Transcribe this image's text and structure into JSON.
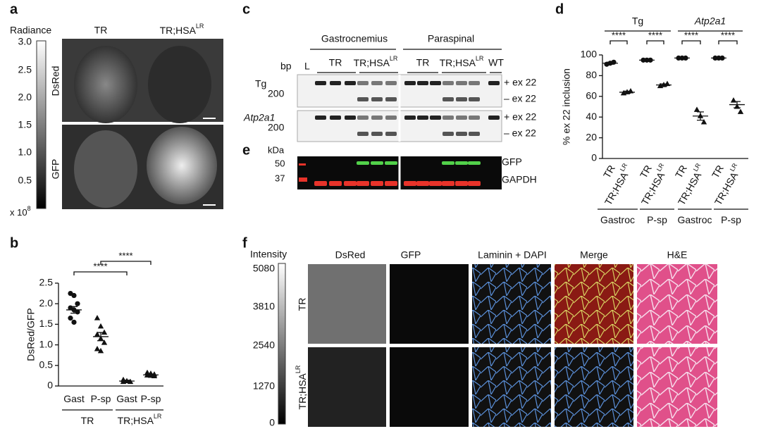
{
  "panel_labels": [
    "a",
    "b",
    "c",
    "d",
    "e",
    "f"
  ],
  "genotype": {
    "tr": "TR",
    "hsa": "TR;HSA",
    "sup": "LR"
  },
  "panel_a": {
    "colorbar_title": "Radiance",
    "colorbar_ticks": [
      "3.0",
      "2.5",
      "2.0",
      "1.5",
      "1.0",
      "0.5"
    ],
    "multiplier": "x 10",
    "exponent": "8",
    "rows": [
      "DsRed",
      "GFP"
    ]
  },
  "panel_c": {
    "tissues": [
      "Gastrocnemius",
      "Paraspinal"
    ],
    "bp": "bp",
    "ladder": "L",
    "wt": "WT",
    "genes": [
      "Tg",
      "Atp2a1"
    ],
    "size": "200",
    "bands": [
      "+ ex 22",
      "– ex 22"
    ]
  },
  "panel_e": {
    "unit": "kDa",
    "sizes": [
      "50",
      "37"
    ],
    "proteins": [
      "GFP",
      "GAPDH"
    ]
  },
  "panel_f": {
    "colorbar_title": "Intensity",
    "colorbar_ticks": [
      "5080",
      "3810",
      "2540",
      "1270",
      "0"
    ],
    "columns": [
      "DsRed",
      "GFP",
      "Laminin + DAPI",
      "Merge",
      "H&E"
    ]
  },
  "chart_data": [
    {
      "type": "strip",
      "ylabel": "DsRed/GFP",
      "categories": [
        {
          "label": "Gast"
        },
        {
          "label": "P-sp"
        },
        {
          "label": "Gast"
        },
        {
          "label": "P-sp"
        }
      ],
      "groups": [
        {
          "label": "TR"
        },
        {
          "label": "TR;HSA",
          "sup": "LR"
        }
      ],
      "points": [
        [
          2.25,
          2.2,
          2.0,
          1.9,
          1.85,
          1.8,
          1.65,
          1.55
        ],
        [
          1.65,
          1.45,
          1.3,
          1.25,
          1.15,
          1.05,
          0.9,
          0.85
        ],
        [
          0.15,
          0.12,
          0.1,
          0.1
        ],
        [
          0.32,
          0.3,
          0.28,
          0.26,
          0.25,
          0.24
        ]
      ],
      "means": [
        1.85,
        1.2,
        0.12,
        0.27
      ],
      "errors": [
        0.08,
        0.1,
        0.02,
        0.02
      ],
      "markers": [
        "circle",
        "triangle",
        "triangle",
        "triangle"
      ],
      "color": "#111111",
      "significance": [
        "****",
        "****"
      ],
      "ylim": [
        0,
        2.5
      ],
      "yticks": [
        0,
        {
          "value": 0.5,
          "label": "0.5"
        },
        {
          "value": 1,
          "label": "1.0"
        },
        {
          "value": 1.5,
          "label": "1.5"
        },
        {
          "value": 2,
          "label": "2.0"
        },
        {
          "value": 2.5,
          "label": "2.5"
        }
      ]
    },
    {
      "type": "strip",
      "ylabel": "% ex 22 inclusion",
      "categories": [
        {
          "label": "TR"
        },
        {
          "label": "TR;HSA",
          "sup": "LR"
        },
        {
          "label": "TR"
        },
        {
          "label": "TR;HSA",
          "sup": "LR"
        },
        {
          "label": "TR"
        },
        {
          "label": "TR;HSA",
          "sup": "LR"
        },
        {
          "label": "TR"
        },
        {
          "label": "TR;HSA",
          "sup": "LR"
        }
      ],
      "groups": [
        {
          "label": "Gastroc"
        },
        {
          "label": "P-sp"
        },
        {
          "label": "Gastroc"
        },
        {
          "label": "P-sp"
        }
      ],
      "genes": [
        "Tg",
        "Atp2a1"
      ],
      "points": [
        [
          91,
          92,
          93
        ],
        [
          63,
          64,
          65
        ],
        [
          95,
          95,
          95
        ],
        [
          70,
          71,
          72
        ],
        [
          97,
          97,
          97
        ],
        [
          47,
          41,
          35
        ],
        [
          97,
          97,
          97
        ],
        [
          56,
          50,
          45
        ]
      ],
      "means": [
        92,
        64,
        95,
        71,
        97,
        41,
        97,
        52
      ],
      "errors": [
        1,
        1,
        0.5,
        1,
        0.5,
        4,
        0.5,
        3
      ],
      "markers": [
        "circle",
        "triangle",
        "circle",
        "triangle",
        "circle",
        "triangle",
        "circle",
        "triangle"
      ],
      "color": "#111111",
      "significance": [
        "****",
        "****",
        "****",
        "****"
      ],
      "ylim": [
        0,
        100
      ],
      "yticks": [
        0,
        20,
        40,
        60,
        80,
        100
      ]
    }
  ]
}
